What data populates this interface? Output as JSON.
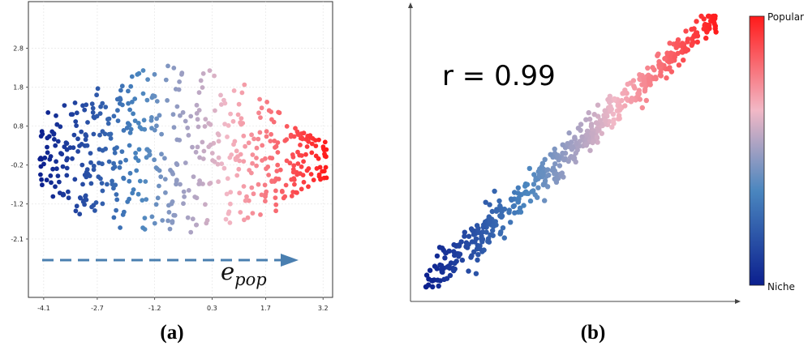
{
  "chart_data": [
    {
      "type": "scatter",
      "panel_label": "(a)",
      "xticks": [
        "-4.1",
        "-2.7",
        "-1.2",
        "0.3",
        "1.7",
        "3.2"
      ],
      "yticks": [
        "2.8",
        "1.8",
        "0.8",
        "-0.2",
        "-1.2",
        "-2.1"
      ],
      "xlim": [
        -4.5,
        3.45
      ],
      "ylim": [
        -3.6,
        4.0
      ],
      "grid": true,
      "arrow_label": "e",
      "arrow_label_subscript": "pop",
      "color_encoding": "x",
      "points": {
        "count": 560,
        "x_range": [
          -4.2,
          3.3
        ],
        "y_range": [
          -2.4,
          2.4
        ]
      }
    },
    {
      "type": "scatter",
      "panel_label": "(b)",
      "annotation": "r = 0.99",
      "colorbar": {
        "top_label": "Popular",
        "bottom_label": "Niche",
        "colors": [
          "#0b1f8e",
          "#4a86bf",
          "#f2b8c6",
          "#ff1a1a"
        ]
      },
      "xlim": [
        0,
        1
      ],
      "ylim": [
        0,
        1
      ],
      "correlation": 0.99,
      "points": {
        "count": 520
      }
    }
  ]
}
